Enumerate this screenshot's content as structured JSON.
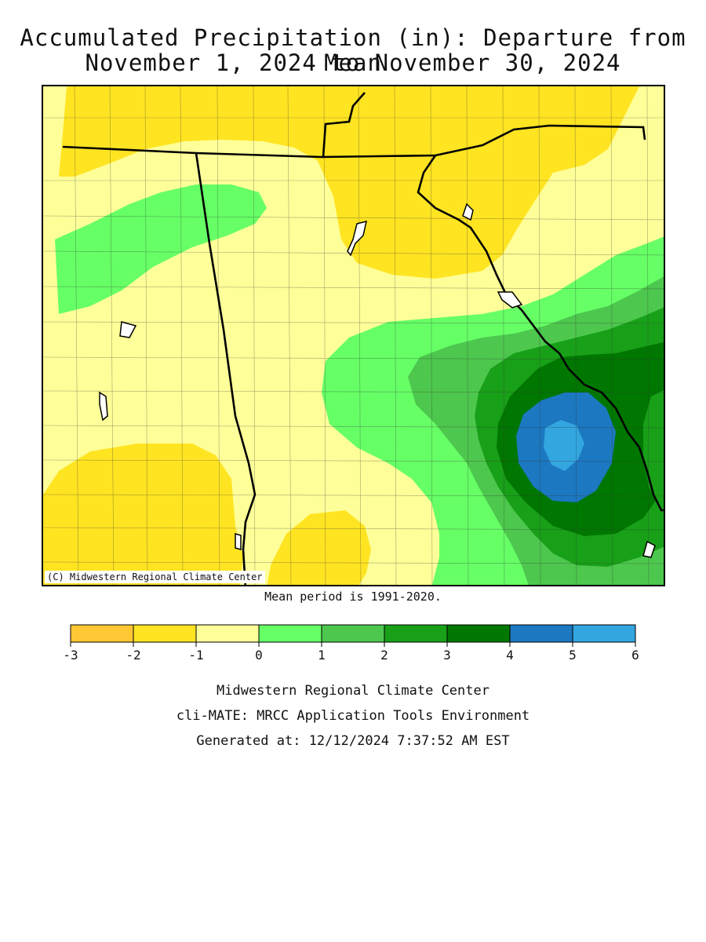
{
  "header": {
    "title_line1": "Accumulated Precipitation (in): Departure from Mean",
    "title_line2": "November 1, 2024 to November 30, 2024"
  },
  "map": {
    "copyright": "(C) Midwestern Regional Climate Center",
    "mean_period": "Mean period is 1991-2020."
  },
  "legend": {
    "colors": [
      "#ffc733",
      "#ffe422",
      "#ffff99",
      "#66ff66",
      "#4dc74d",
      "#18a018",
      "#007700",
      "#1c78c0",
      "#33a6e0"
    ],
    "ticks": [
      "-3",
      "-2",
      "-1",
      "0",
      "1",
      "2",
      "3",
      "4",
      "5",
      "6"
    ]
  },
  "footer": {
    "line1": "Midwestern Regional Climate Center",
    "line2": "cli-MATE: MRCC Application Tools Environment",
    "line3": "Generated at: 12/12/2024 7:37:52 AM EST"
  }
}
